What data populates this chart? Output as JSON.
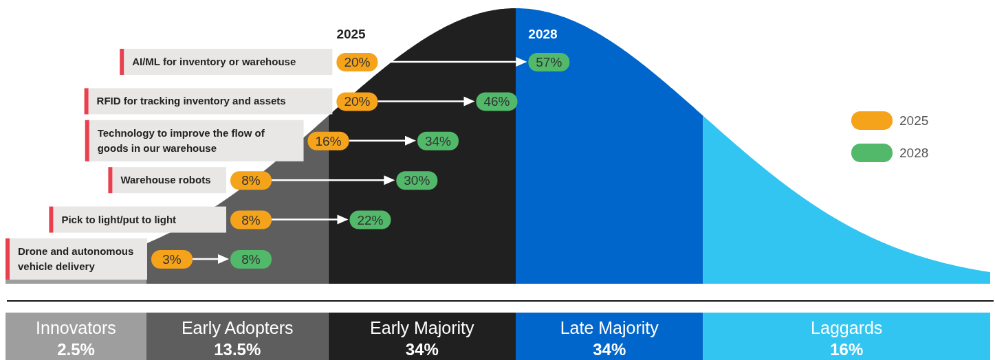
{
  "chart_data": [
    {
      "type": "other",
      "categories": [
        "Innovators",
        "Early Adopters",
        "Early Majority",
        "Late Majority",
        "Laggards"
      ],
      "values": [
        2.5,
        13.5,
        34,
        34,
        16
      ],
      "value_labels": [
        "2.5%",
        "13.5%",
        "34%",
        "34%",
        "16%"
      ],
      "colors": [
        "#9e9e9e",
        "#5e5e5e",
        "#202020",
        "#0066cc",
        "#33c5f2"
      ]
    },
    {
      "type": "other",
      "categories": [
        "AI/ML for inventory or warehouse",
        "RFID for tracking inventory and assets",
        "Technology to improve the flow of goods in our warehouse",
        "Warehouse robots",
        "Pick to light/put to light",
        "Drone and autonomous vehicle delivery"
      ],
      "series": [
        {
          "name": "2025",
          "color": "#f5a31a",
          "values": [
            20,
            20,
            16,
            8,
            8,
            3
          ],
          "value_labels": [
            "20%",
            "20%",
            "16%",
            "8%",
            "8%",
            "3%"
          ]
        },
        {
          "name": "2028",
          "color": "#52b86a",
          "values": [
            57,
            46,
            34,
            30,
            22,
            8
          ],
          "value_labels": [
            "57%",
            "46%",
            "34%",
            "30%",
            "22%",
            "8%"
          ]
        }
      ],
      "legend": "right"
    }
  ]
}
